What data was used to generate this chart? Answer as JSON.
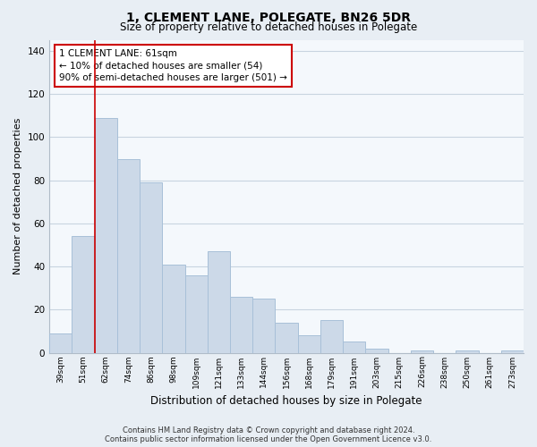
{
  "title": "1, CLEMENT LANE, POLEGATE, BN26 5DR",
  "subtitle": "Size of property relative to detached houses in Polegate",
  "xlabel": "Distribution of detached houses by size in Polegate",
  "ylabel": "Number of detached properties",
  "bar_color": "#ccd9e8",
  "bar_edge_color": "#a8c0d8",
  "highlight_line_color": "#cc0000",
  "categories": [
    "39sqm",
    "51sqm",
    "62sqm",
    "74sqm",
    "86sqm",
    "98sqm",
    "109sqm",
    "121sqm",
    "133sqm",
    "144sqm",
    "156sqm",
    "168sqm",
    "179sqm",
    "191sqm",
    "203sqm",
    "215sqm",
    "226sqm",
    "238sqm",
    "250sqm",
    "261sqm",
    "273sqm"
  ],
  "values": [
    9,
    54,
    109,
    90,
    79,
    41,
    36,
    47,
    26,
    25,
    14,
    8,
    15,
    5,
    2,
    0,
    1,
    0,
    1,
    0,
    1
  ],
  "ylim": [
    0,
    145
  ],
  "yticks": [
    0,
    20,
    40,
    60,
    80,
    100,
    120,
    140
  ],
  "annotation_title": "1 CLEMENT LANE: 61sqm",
  "annotation_line1": "← 10% of detached houses are smaller (54)",
  "annotation_line2": "90% of semi-detached houses are larger (501) →",
  "footer_line1": "Contains HM Land Registry data © Crown copyright and database right 2024.",
  "footer_line2": "Contains public sector information licensed under the Open Government Licence v3.0.",
  "background_color": "#e8eef4",
  "plot_background_color": "#f4f8fc",
  "grid_color": "#c8d4e0"
}
